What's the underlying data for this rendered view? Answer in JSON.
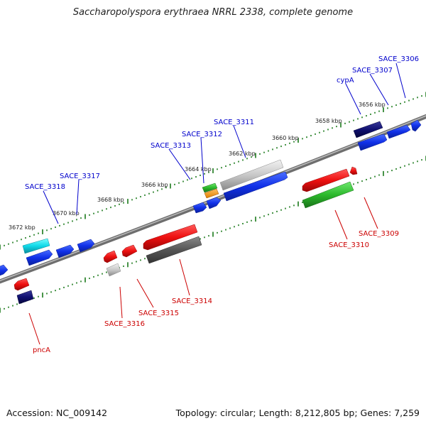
{
  "title": "Saccharopolyspora erythraea NRRL 2338, complete genome",
  "footer": {
    "accession": "Accession: NC_009142",
    "topology": "Topology: circular; Length: 8,212,805 bp; Genes: 7,259"
  },
  "kbp_labels": [
    "3656 kbp",
    "3658 kbp",
    "3660 kbp",
    "3662 kbp",
    "3664 kbp",
    "3666 kbp",
    "3668 kbp",
    "3670 kbp",
    "3672 kbp"
  ],
  "gene_labels": [
    "SACE_3306",
    "SACE_3307",
    "cypA",
    "SACE_3311",
    "SACE_3312",
    "SACE_3313",
    "SACE_3317",
    "SACE_3318",
    "SACE_3309",
    "SACE_3310",
    "SACE_3314",
    "SACE_3315",
    "SACE_3316",
    "pncA"
  ],
  "colors": {
    "forward_label": "#0000cc",
    "reverse_label": "#cc0000",
    "tick": "#1a7a1a",
    "backbone": "#888888"
  }
}
